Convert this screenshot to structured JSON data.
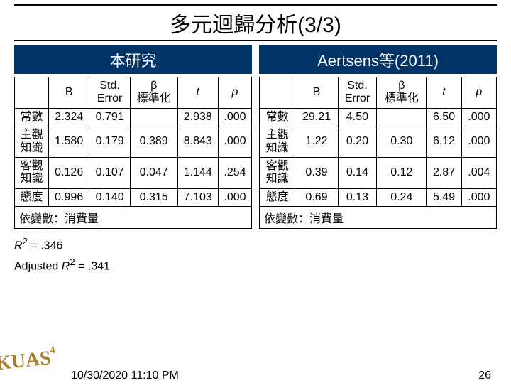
{
  "title": "多元迴歸分析(3/3)",
  "panels": [
    {
      "header": "本研究",
      "dep": "依變數：消費量"
    },
    {
      "header": "Aertsens等(2011)",
      "dep": "依變數：消費量"
    }
  ],
  "col_headers": {
    "blank": "",
    "B": "B",
    "std1": "Std.",
    "std2": "Error",
    "beta1": "β",
    "beta2": "標準化",
    "t": "t",
    "p": "p"
  },
  "left_rows": [
    {
      "label": "常數",
      "B": "2.324",
      "SE": "0.791",
      "beta": "",
      "t": "2.938",
      "p": ".000"
    },
    {
      "label": "主觀\n知識",
      "B": "1.580",
      "SE": "0.179",
      "beta": "0.389",
      "t": "8.843",
      "p": ".000"
    },
    {
      "label": "客觀\n知識",
      "B": "0.126",
      "SE": "0.107",
      "beta": "0.047",
      "t": "1.144",
      "p": ".254"
    },
    {
      "label": "態度",
      "B": "0.996",
      "SE": "0.140",
      "beta": "0.315",
      "t": "7.103",
      "p": ".000"
    }
  ],
  "right_rows": [
    {
      "label": "常數",
      "B": "29.21",
      "SE": "4.50",
      "beta": "",
      "t": "6.50",
      "p": ".000"
    },
    {
      "label": "主觀\n知識",
      "B": "1.22",
      "SE": "0.20",
      "beta": "0.30",
      "t": "6.12",
      "p": ".000"
    },
    {
      "label": "客觀\n知識",
      "B": "0.39",
      "SE": "0.14",
      "beta": "0.12",
      "t": "2.87",
      "p": ".004"
    },
    {
      "label": "態度",
      "B": "0.69",
      "SE": "0.13",
      "beta": "0.24",
      "t": "5.49",
      "p": ".000"
    }
  ],
  "stats": {
    "r2_label": "R",
    "r2_sup": "2",
    "r2_eq": " = .346",
    "adj_label": "Adjusted ",
    "adj_r2": "R",
    "adj_sup": "2",
    "adj_eq": " = .341"
  },
  "logo": {
    "text": "KUAS",
    "sup": "4"
  },
  "footer": {
    "date": "10/30/2020 11:10 PM",
    "page": "26"
  },
  "colors": {
    "header_bg": "#003366",
    "header_fg": "#ffffff",
    "logo_color": "#a97f2a"
  }
}
